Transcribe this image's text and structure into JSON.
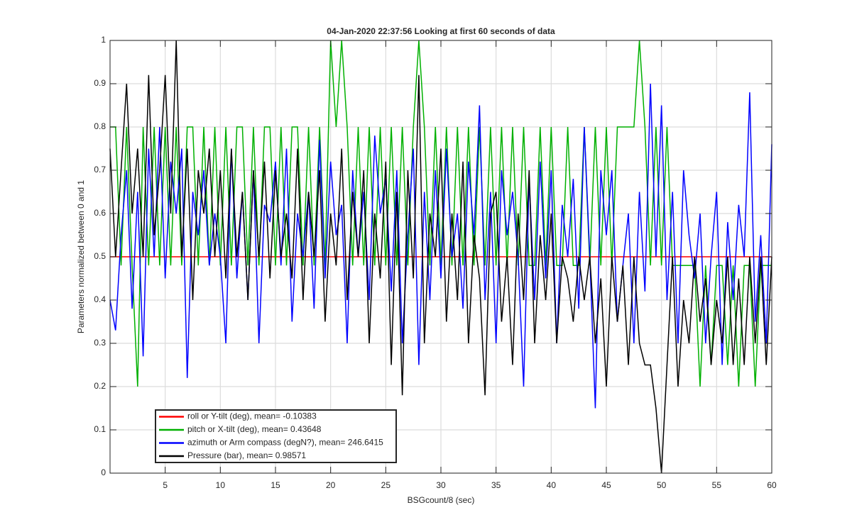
{
  "chart_data": {
    "type": "line",
    "title": "04-Jan-2020 22:37:56 Looking at first 60 seconds of data",
    "xlabel": "BSGcount/8 (sec)",
    "ylabel": "Parameters normalized between 0 and 1",
    "x": [
      0,
      0.5,
      1,
      1.5,
      2,
      2.5,
      3,
      3.5,
      4,
      4.5,
      5,
      5.5,
      6,
      6.5,
      7,
      7.5,
      8,
      8.5,
      9,
      9.5,
      10,
      10.5,
      11,
      11.5,
      12,
      12.5,
      13,
      13.5,
      14,
      14.5,
      15,
      15.5,
      16,
      16.5,
      17,
      17.5,
      18,
      18.5,
      19,
      19.5,
      20,
      20.5,
      21,
      21.5,
      22,
      22.5,
      23,
      23.5,
      24,
      24.5,
      25,
      25.5,
      26,
      26.5,
      27,
      27.5,
      28,
      28.5,
      29,
      29.5,
      30,
      30.5,
      31,
      31.5,
      32,
      32.5,
      33,
      33.5,
      34,
      34.5,
      35,
      35.5,
      36,
      36.5,
      37,
      37.5,
      38,
      38.5,
      39,
      39.5,
      40,
      40.5,
      41,
      41.5,
      42,
      42.5,
      43,
      43.5,
      44,
      44.5,
      45,
      45.5,
      46,
      46.5,
      47,
      47.5,
      48,
      48.5,
      49,
      49.5,
      50,
      50.5,
      51,
      51.5,
      52,
      52.5,
      53,
      53.5,
      54,
      54.5,
      55,
      55.5,
      56,
      56.5,
      57,
      57.5,
      58,
      58.5,
      59,
      59.5,
      60
    ],
    "series": [
      {
        "name": "roll or Y-tilt (deg), mean= -0.10383",
        "color": "#ff0000",
        "values": [
          0.5,
          0.5,
          0.5,
          0.5,
          0.5,
          0.5,
          0.5,
          0.5,
          0.5,
          0.5,
          0.5,
          0.5,
          0.5,
          0.5,
          0.5,
          0.5,
          0.5,
          0.5,
          0.5,
          0.5,
          0.5,
          0.5,
          0.5,
          0.5,
          0.5,
          0.5,
          0.5,
          0.5,
          0.5,
          0.5,
          0.5,
          0.5,
          0.5,
          0.5,
          0.5,
          0.5,
          0.5,
          0.5,
          0.5,
          0.5,
          0.5,
          0.5,
          0.5,
          0.5,
          0.5,
          0.5,
          0.5,
          0.5,
          0.5,
          0.5,
          0.5,
          0.5,
          0.5,
          0.5,
          0.5,
          0.5,
          0.5,
          0.5,
          0.5,
          0.5,
          0.5,
          0.5,
          0.5,
          0.5,
          0.5,
          0.5,
          0.5,
          0.5,
          0.5,
          0.5,
          0.5,
          0.5,
          0.5,
          0.5,
          0.5,
          0.5,
          0.5,
          0.5,
          0.5,
          0.5,
          0.5,
          0.5,
          0.5,
          0.5,
          0.5,
          0.5,
          0.5,
          0.5,
          0.5,
          0.5,
          0.5,
          0.5,
          0.5,
          0.5,
          0.5,
          0.5,
          0.5,
          0.5,
          0.5,
          0.5,
          0.5,
          0.5,
          0.5,
          0.5,
          0.5,
          0.5,
          0.5,
          0.5,
          0.5,
          0.5,
          0.5,
          0.5,
          0.5,
          0.5,
          0.5,
          0.5,
          0.5,
          0.5,
          0.5,
          0.5,
          0.5
        ]
      },
      {
        "name": "pitch or X-tilt (deg), mean= 0.43648",
        "color": "#00b000",
        "values": [
          0.8,
          0.8,
          0.48,
          0.8,
          0.48,
          0.2,
          0.8,
          0.48,
          0.8,
          0.48,
          0.8,
          0.48,
          0.8,
          0.48,
          0.8,
          0.8,
          0.48,
          0.8,
          0.48,
          0.8,
          0.48,
          0.8,
          0.48,
          0.8,
          0.8,
          0.48,
          0.8,
          0.48,
          0.8,
          0.8,
          0.48,
          0.8,
          0.48,
          0.8,
          0.8,
          0.48,
          0.8,
          0.48,
          0.8,
          0.48,
          1,
          0.8,
          1,
          0.8,
          0.48,
          0.8,
          0.48,
          0.8,
          0.48,
          0.8,
          0.48,
          0.8,
          0.48,
          0.8,
          0.48,
          0.8,
          1,
          0.8,
          0.48,
          0.8,
          0.48,
          0.8,
          0.48,
          0.8,
          0.48,
          0.8,
          0.48,
          0.8,
          0.48,
          0.8,
          0.48,
          0.8,
          0.48,
          0.8,
          0.48,
          0.8,
          0.48,
          0.48,
          0.8,
          0.48,
          0.8,
          0.48,
          0.48,
          0.8,
          0.48,
          0.48,
          0.8,
          0.48,
          0.8,
          0.48,
          0.8,
          0.48,
          0.8,
          0.8,
          0.8,
          0.8,
          1,
          0.8,
          0.48,
          0.8,
          0.48,
          0.8,
          0.48,
          0.48,
          0.48,
          0.48,
          0.48,
          0.2,
          0.48,
          0.25,
          0.48,
          0.48,
          0.25,
          0.48,
          0.2,
          0.48,
          0.48,
          0.2,
          0.48,
          0.48,
          0.48
        ]
      },
      {
        "name": "azimuth or Arm compass (degN?), mean= 246.6415",
        "color": "#0000ff",
        "values": [
          0.4,
          0.33,
          0.55,
          0.7,
          0.38,
          0.65,
          0.27,
          0.75,
          0.5,
          0.8,
          0.45,
          0.72,
          0.6,
          0.75,
          0.22,
          0.65,
          0.55,
          0.7,
          0.48,
          0.6,
          0.5,
          0.3,
          0.75,
          0.45,
          0.65,
          0.4,
          0.7,
          0.3,
          0.62,
          0.58,
          0.72,
          0.48,
          0.75,
          0.35,
          0.6,
          0.5,
          0.65,
          0.38,
          0.77,
          0.45,
          0.72,
          0.55,
          0.62,
          0.3,
          0.7,
          0.5,
          0.65,
          0.4,
          0.78,
          0.6,
          0.68,
          0.42,
          0.7,
          0.3,
          0.55,
          0.75,
          0.25,
          0.65,
          0.4,
          0.7,
          0.45,
          0.75,
          0.5,
          0.6,
          0.38,
          0.72,
          0.55,
          0.85,
          0.4,
          0.65,
          0.3,
          0.7,
          0.55,
          0.65,
          0.5,
          0.2,
          0.68,
          0.4,
          0.72,
          0.45,
          0.7,
          0.3,
          0.62,
          0.5,
          0.68,
          0.38,
          0.8,
          0.5,
          0.15,
          0.7,
          0.55,
          0.7,
          0.35,
          0.48,
          0.6,
          0.3,
          0.65,
          0.42,
          0.9,
          0.5,
          0.85,
          0.4,
          0.65,
          0.3,
          0.7,
          0.55,
          0.45,
          0.6,
          0.3,
          0.5,
          0.65,
          0.25,
          0.58,
          0.4,
          0.62,
          0.5,
          0.88,
          0.35,
          0.55,
          0.3,
          0.76
        ]
      },
      {
        "name": "Pressure (bar), mean= 0.98571",
        "color": "#000000",
        "values": [
          0.75,
          0.5,
          0.7,
          0.9,
          0.6,
          0.75,
          0.5,
          0.92,
          0.55,
          0.7,
          0.92,
          0.6,
          1,
          0.5,
          0.75,
          0.4,
          0.7,
          0.6,
          0.75,
          0.5,
          0.7,
          0.45,
          0.75,
          0.5,
          0.65,
          0.4,
          0.7,
          0.5,
          0.72,
          0.45,
          0.7,
          0.5,
          0.6,
          0.45,
          0.75,
          0.4,
          0.65,
          0.5,
          0.7,
          0.35,
          0.6,
          0.48,
          0.75,
          0.4,
          0.65,
          0.5,
          0.7,
          0.3,
          0.6,
          0.45,
          0.72,
          0.25,
          0.65,
          0.18,
          0.7,
          0.45,
          0.92,
          0.3,
          0.6,
          0.5,
          0.75,
          0.35,
          0.6,
          0.4,
          0.72,
          0.3,
          0.55,
          0.45,
          0.18,
          0.6,
          0.65,
          0.35,
          0.5,
          0.25,
          0.6,
          0.4,
          0.7,
          0.3,
          0.55,
          0.4,
          0.6,
          0.3,
          0.5,
          0.45,
          0.35,
          0.5,
          0.4,
          0.5,
          0.3,
          0.45,
          0.2,
          0.5,
          0.35,
          0.48,
          0.25,
          0.5,
          0.3,
          0.25,
          0.25,
          0.15,
          0,
          0.25,
          0.5,
          0.2,
          0.4,
          0.3,
          0.5,
          0.35,
          0.45,
          0.25,
          0.4,
          0.3,
          0.5,
          0.25,
          0.45,
          0.25,
          0.5,
          0.3,
          0.5,
          0.25,
          0.5
        ]
      }
    ],
    "xlim": [
      0,
      60
    ],
    "xticks": [
      5,
      10,
      15,
      20,
      25,
      30,
      35,
      40,
      45,
      50,
      55,
      60
    ],
    "ylim": [
      0,
      1
    ],
    "yticks": [
      0,
      0.1,
      0.2,
      0.3,
      0.4,
      0.5,
      0.6,
      0.7,
      0.8,
      0.9,
      1
    ],
    "grid": true,
    "legend": "lower left"
  }
}
